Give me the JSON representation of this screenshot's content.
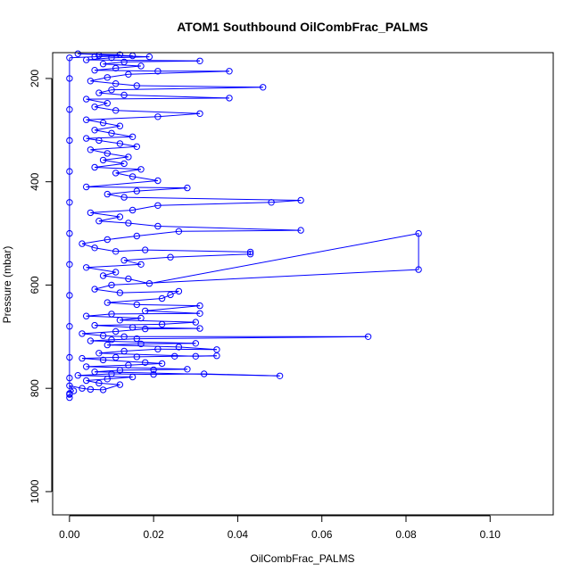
{
  "chart_data": {
    "type": "line",
    "title": "ATOM1 Southbound OilCombFrac_PALMS",
    "xlabel": "OilCombFrac_PALMS",
    "ylabel": "Pressure (mbar)",
    "xlim": [
      -0.004,
      0.115
    ],
    "ylim": [
      1045,
      150
    ],
    "y_reversed": true,
    "grid": false,
    "legend": "none",
    "x_ticks": [
      0.0,
      0.02,
      0.04,
      0.06,
      0.08,
      0.1
    ],
    "x_tick_labels": [
      "0.00",
      "0.02",
      "0.04",
      "0.06",
      "0.08",
      "0.10"
    ],
    "y_ticks": [
      200,
      400,
      600,
      800,
      1000
    ],
    "y_tick_labels": [
      "200",
      "400",
      "600",
      "800",
      "1000"
    ],
    "series_color": "#0000ff",
    "marker": "open-circle",
    "points": [
      [
        0.0,
        818
      ],
      [
        0.0,
        812
      ],
      [
        0.001,
        805
      ],
      [
        0.0,
        795
      ],
      [
        0.003,
        800
      ],
      [
        0.005,
        802
      ],
      [
        0.008,
        803
      ],
      [
        0.012,
        793
      ],
      [
        0.007,
        790
      ],
      [
        0.004,
        785
      ],
      [
        0.009,
        782
      ],
      [
        0.015,
        778
      ],
      [
        0.002,
        775
      ],
      [
        0.01,
        772
      ],
      [
        0.02,
        773
      ],
      [
        0.032,
        772
      ],
      [
        0.05,
        776
      ],
      [
        0.006,
        768
      ],
      [
        0.012,
        765
      ],
      [
        0.02,
        764
      ],
      [
        0.028,
        763
      ],
      [
        0.004,
        758
      ],
      [
        0.014,
        755
      ],
      [
        0.022,
        752
      ],
      [
        0.018,
        750
      ],
      [
        0.008,
        745
      ],
      [
        0.003,
        742
      ],
      [
        0.011,
        740
      ],
      [
        0.016,
        739
      ],
      [
        0.025,
        738
      ],
      [
        0.035,
        737
      ],
      [
        0.03,
        738
      ],
      [
        0.007,
        732
      ],
      [
        0.013,
        728
      ],
      [
        0.021,
        724
      ],
      [
        0.035,
        725
      ],
      [
        0.026,
        720
      ],
      [
        0.009,
        716
      ],
      [
        0.017,
        714
      ],
      [
        0.03,
        713
      ],
      [
        0.005,
        708
      ],
      [
        0.01,
        706
      ],
      [
        0.016,
        704
      ],
      [
        0.071,
        700
      ],
      [
        0.013,
        700
      ],
      [
        0.008,
        698
      ],
      [
        0.003,
        694
      ],
      [
        0.011,
        690
      ],
      [
        0.018,
        685
      ],
      [
        0.031,
        684
      ],
      [
        0.015,
        682
      ],
      [
        0.006,
        678
      ],
      [
        0.022,
        676
      ],
      [
        0.03,
        672
      ],
      [
        0.012,
        668
      ],
      [
        0.017,
        664
      ],
      [
        0.004,
        660
      ],
      [
        0.01,
        656
      ],
      [
        0.031,
        655
      ],
      [
        0.018,
        650
      ],
      [
        0.031,
        640
      ],
      [
        0.016,
        638
      ],
      [
        0.009,
        634
      ],
      [
        0.022,
        626
      ],
      [
        0.024,
        619
      ],
      [
        0.026,
        612
      ],
      [
        0.012,
        615
      ],
      [
        0.006,
        608
      ],
      [
        0.01,
        600
      ],
      [
        0.083,
        570
      ],
      [
        0.083,
        500
      ],
      [
        0.019,
        597
      ],
      [
        0.014,
        588
      ],
      [
        0.008,
        582
      ],
      [
        0.011,
        575
      ],
      [
        0.004,
        566
      ],
      [
        0.017,
        560
      ],
      [
        0.013,
        552
      ],
      [
        0.024,
        546
      ],
      [
        0.043,
        540
      ],
      [
        0.043,
        536
      ],
      [
        0.018,
        532
      ],
      [
        0.011,
        535
      ],
      [
        0.006,
        528
      ],
      [
        0.003,
        520
      ],
      [
        0.009,
        512
      ],
      [
        0.016,
        505
      ],
      [
        0.026,
        496
      ],
      [
        0.055,
        494
      ],
      [
        0.021,
        486
      ],
      [
        0.014,
        480
      ],
      [
        0.007,
        476
      ],
      [
        0.012,
        468
      ],
      [
        0.005,
        460
      ],
      [
        0.015,
        455
      ],
      [
        0.021,
        446
      ],
      [
        0.048,
        440
      ],
      [
        0.055,
        436
      ],
      [
        0.013,
        430
      ],
      [
        0.009,
        424
      ],
      [
        0.016,
        418
      ],
      [
        0.028,
        412
      ],
      [
        0.004,
        410
      ],
      [
        0.021,
        398
      ],
      [
        0.015,
        390
      ],
      [
        0.011,
        383
      ],
      [
        0.017,
        376
      ],
      [
        0.006,
        372
      ],
      [
        0.013,
        365
      ],
      [
        0.008,
        358
      ],
      [
        0.014,
        352
      ],
      [
        0.009,
        345
      ],
      [
        0.005,
        338
      ],
      [
        0.016,
        332
      ],
      [
        0.012,
        326
      ],
      [
        0.007,
        320
      ],
      [
        0.004,
        316
      ],
      [
        0.015,
        313
      ],
      [
        0.01,
        306
      ],
      [
        0.006,
        300
      ],
      [
        0.012,
        292
      ],
      [
        0.008,
        286
      ],
      [
        0.004,
        280
      ],
      [
        0.021,
        274
      ],
      [
        0.031,
        268
      ],
      [
        0.011,
        262
      ],
      [
        0.006,
        255
      ],
      [
        0.009,
        248
      ],
      [
        0.004,
        240
      ],
      [
        0.038,
        238
      ],
      [
        0.013,
        232
      ],
      [
        0.007,
        228
      ],
      [
        0.01,
        222
      ],
      [
        0.046,
        217
      ],
      [
        0.016,
        214
      ],
      [
        0.011,
        210
      ],
      [
        0.005,
        205
      ],
      [
        0.009,
        198
      ],
      [
        0.014,
        192
      ],
      [
        0.038,
        186
      ],
      [
        0.021,
        186
      ],
      [
        0.006,
        184
      ],
      [
        0.011,
        180
      ],
      [
        0.017,
        176
      ],
      [
        0.008,
        172
      ],
      [
        0.013,
        168
      ],
      [
        0.031,
        166
      ],
      [
        0.004,
        164
      ],
      [
        0.01,
        160
      ],
      [
        0.019,
        158
      ],
      [
        0.007,
        155
      ],
      [
        0.012,
        154
      ],
      [
        0.002,
        152
      ],
      [
        0.015,
        156
      ],
      [
        0.006,
        158
      ],
      [
        0.0,
        160
      ],
      [
        0.0,
        200
      ],
      [
        0.0,
        260
      ],
      [
        0.0,
        320
      ],
      [
        0.0,
        380
      ],
      [
        0.0,
        440
      ],
      [
        0.0,
        500
      ],
      [
        0.0,
        560
      ],
      [
        0.0,
        620
      ],
      [
        0.0,
        680
      ],
      [
        0.0,
        740
      ],
      [
        0.0,
        780
      ],
      [
        0.0,
        810
      ]
    ]
  }
}
